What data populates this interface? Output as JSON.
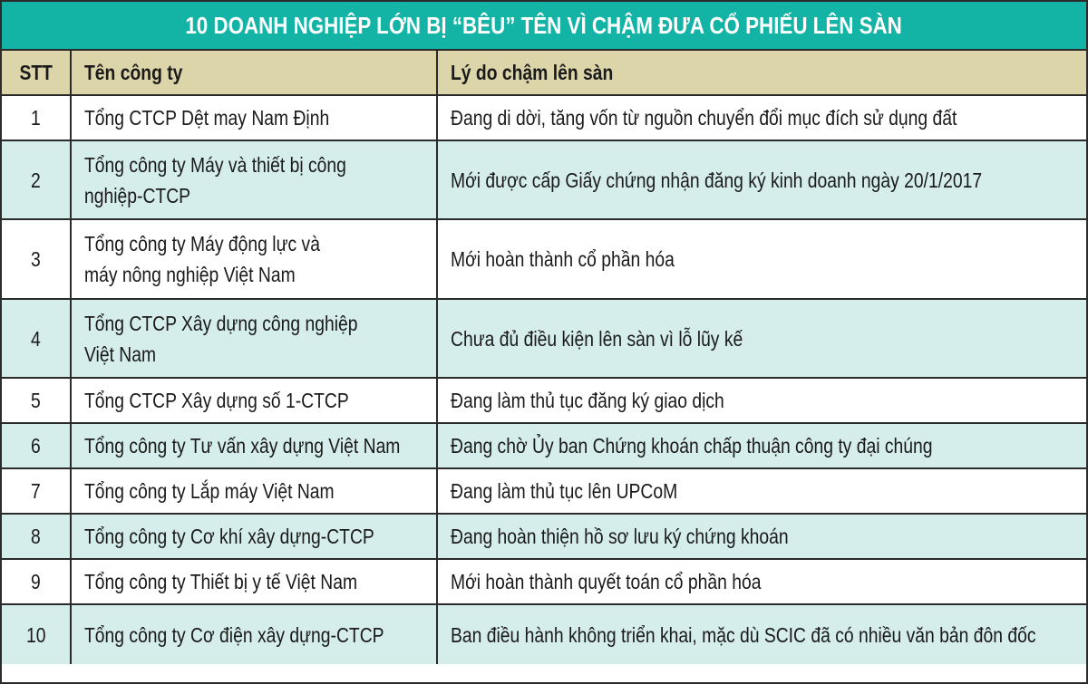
{
  "title": "10 DOANH NGHIỆP LỚN BỊ “BÊU” TÊN VÌ CHẬM ĐƯA CỔ PHIẾU LÊN SÀN",
  "colors": {
    "title_bg": "#13b3a6",
    "header_bg": "#ddd5aa",
    "alt_row_bg": "#d5edeb",
    "border": "#2b2b2b"
  },
  "columns": [
    "STT",
    "Tên công ty",
    "Lý do chậm lên sàn"
  ],
  "rows": [
    {
      "stt": "1",
      "company": [
        "Tổng CTCP Dệt may Nam Định"
      ],
      "reason": "Đang di dời, tăng vốn từ nguồn chuyển đổi mục đích sử dụng đất"
    },
    {
      "stt": "2",
      "company": [
        "Tổng công ty Máy và thiết bị công",
        "nghiệp-CTCP"
      ],
      "reason": "Mới được cấp Giấy chứng nhận đăng ký kinh doanh ngày 20/1/2017"
    },
    {
      "stt": "3",
      "company": [
        "Tổng công ty Máy động lực và",
        "máy nông nghiệp Việt Nam"
      ],
      "reason": "Mới hoàn thành cổ phần hóa"
    },
    {
      "stt": "4",
      "company": [
        "Tổng CTCP Xây dựng công nghiệp",
        "Việt Nam"
      ],
      "reason": "Chưa đủ điều kiện lên sàn vì lỗ lũy kế"
    },
    {
      "stt": "5",
      "company": [
        "Tổng CTCP Xây dựng số 1-CTCP"
      ],
      "reason": "Đang làm thủ tục đăng ký giao dịch"
    },
    {
      "stt": "6",
      "company": [
        "Tổng công ty Tư vấn xây dựng Việt Nam"
      ],
      "reason": "Đang chờ Ủy ban Chứng khoán chấp thuận công ty đại chúng"
    },
    {
      "stt": "7",
      "company": [
        "Tổng công ty Lắp máy Việt Nam"
      ],
      "reason": "Đang làm thủ tục lên UPCoM"
    },
    {
      "stt": "8",
      "company": [
        "Tổng công ty Cơ khí xây dựng-CTCP"
      ],
      "reason": "Đang hoàn thiện hồ sơ lưu ký chứng khoán"
    },
    {
      "stt": "9",
      "company": [
        "Tổng công ty Thiết bị y tế Việt Nam"
      ],
      "reason": "Mới hoàn thành quyết toán cổ phần hóa"
    },
    {
      "stt": "10",
      "company": [
        "Tổng công ty Cơ điện xây dựng-CTCP"
      ],
      "reason": "Ban điều hành không triển khai, mặc dù SCIC đã có nhiều văn bản đôn đốc"
    }
  ]
}
